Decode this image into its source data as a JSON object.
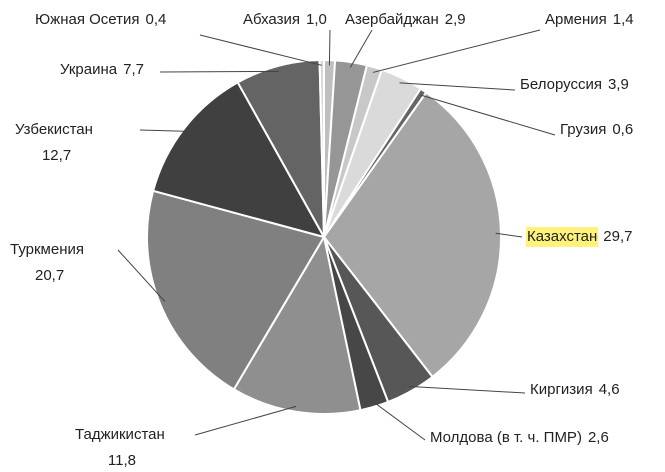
{
  "chart_data": {
    "type": "pie",
    "categories": [
      "Абхазия",
      "Азербайджан",
      "Армения",
      "Белоруссия",
      "Грузия",
      "Казахстан",
      "Киргизия",
      "Молдова (в т. ч. ПМР)",
      "Таджикистан",
      "Туркмения",
      "Узбекистан",
      "Украина",
      "Южная Осетия"
    ],
    "values": [
      1.0,
      2.9,
      1.4,
      3.9,
      0.6,
      29.7,
      4.6,
      2.6,
      11.8,
      20.7,
      12.7,
      7.7,
      0.4
    ],
    "value_labels": [
      "1,0",
      "2,9",
      "1,4",
      "3,9",
      "0,6",
      "29,7",
      "4,6",
      "2,6",
      "11,8",
      "20,7",
      "12,7",
      "7,7",
      "0,4"
    ],
    "colors": [
      "#bfbfbf",
      "#969696",
      "#c8c8c8",
      "#dadada",
      "#666666",
      "#a6a6a6",
      "#575757",
      "#474747",
      "#8f8f8f",
      "#808080",
      "#404040",
      "#646464",
      "#d9d9d9"
    ]
  }
}
